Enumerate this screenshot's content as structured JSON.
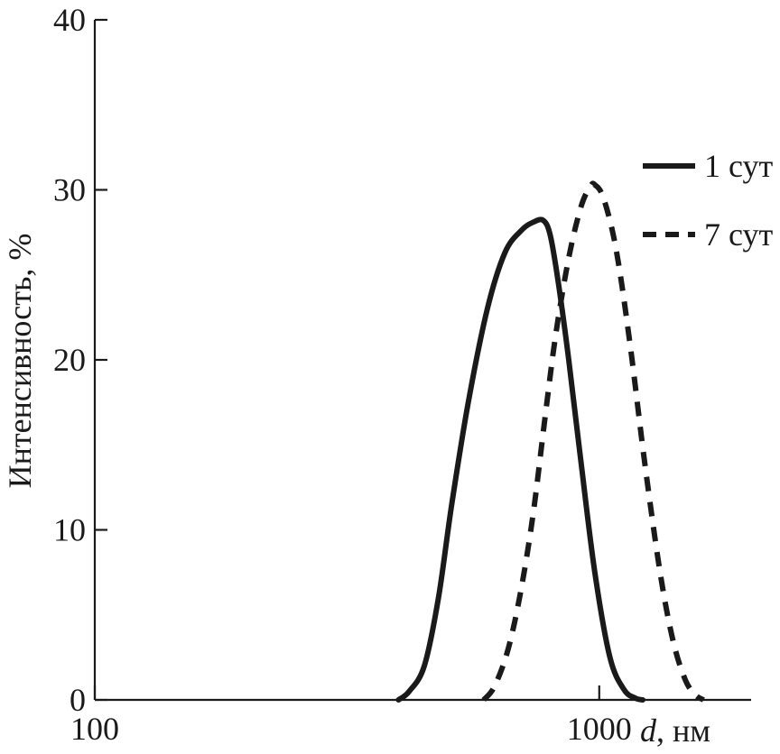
{
  "chart_data": {
    "type": "line",
    "xscale": "log",
    "xlim": [
      100,
      2000
    ],
    "ylim": [
      0,
      40
    ],
    "x_ticks": [
      {
        "value": 100,
        "label": "100"
      },
      {
        "value": 1000,
        "label": "1000"
      }
    ],
    "y_ticks": [
      {
        "value": 0,
        "label": "0"
      },
      {
        "value": 10,
        "label": "10"
      },
      {
        "value": 20,
        "label": "20"
      },
      {
        "value": 30,
        "label": "30"
      },
      {
        "value": 40,
        "label": "40"
      }
    ],
    "xlabel_italic": "d",
    "xlabel_rest": ", нм",
    "ylabel": "Интенсивность, %",
    "legend_position": "right",
    "series": [
      {
        "name": "1 сут",
        "style": "solid",
        "color": "#1a1a1a",
        "x": [
          400,
          420,
          450,
          480,
          510,
          550,
          600,
          650,
          700,
          740,
          775,
          800,
          830,
          870,
          920,
          980,
          1050,
          1120,
          1180,
          1220
        ],
        "y": [
          0,
          0.5,
          2.0,
          6.0,
          11.5,
          17.5,
          23.0,
          26.3,
          27.6,
          28.1,
          28.2,
          27.3,
          24.5,
          20.0,
          14.0,
          7.5,
          2.5,
          0.6,
          0.1,
          0
        ]
      },
      {
        "name": "7 сут",
        "style": "dashed",
        "color": "#1a1a1a",
        "x": [
          590,
          620,
          660,
          700,
          740,
          780,
          820,
          870,
          920,
          960,
          980,
          1020,
          1080,
          1150,
          1230,
          1320,
          1400,
          1480,
          1550,
          1610
        ],
        "y": [
          0,
          0.8,
          3.0,
          6.5,
          11.0,
          16.5,
          21.5,
          26.0,
          29.0,
          30.2,
          30.3,
          29.5,
          26.5,
          21.0,
          14.0,
          7.5,
          3.5,
          1.2,
          0.3,
          0
        ]
      }
    ]
  }
}
